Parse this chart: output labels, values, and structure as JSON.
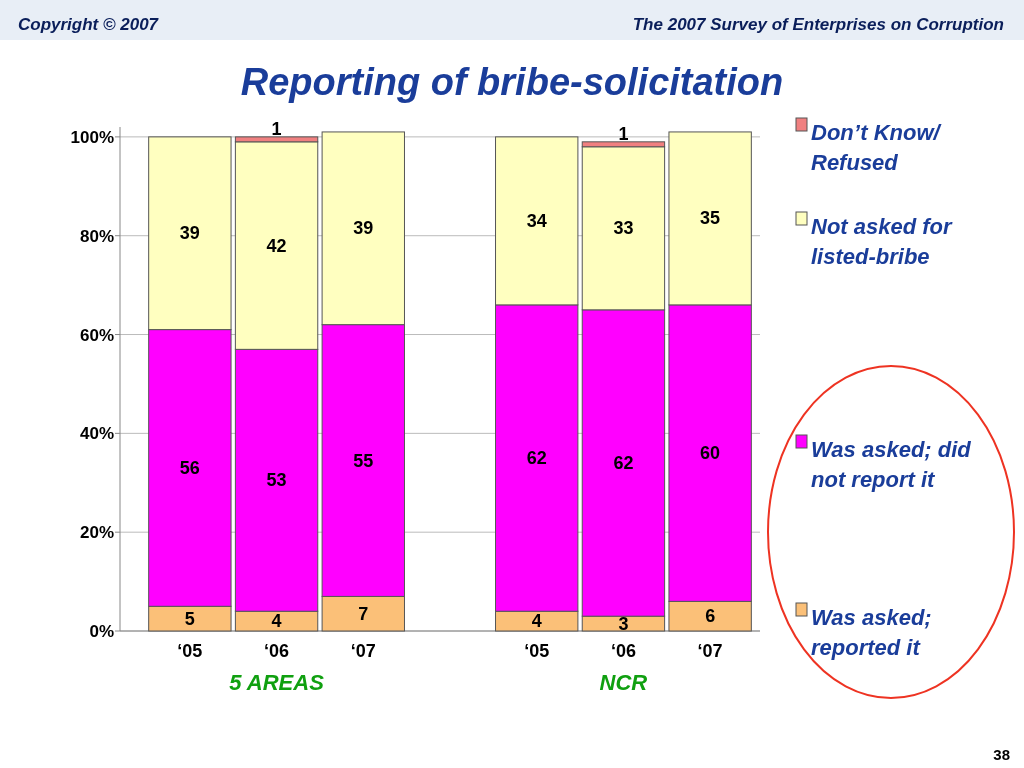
{
  "chart_data": {
    "type": "bar",
    "title": "Reporting of bribe-solicitation",
    "stacked": true,
    "data_labels": true,
    "grid": "y",
    "legend": "right",
    "categories": [
      "‘05",
      "‘06",
      "‘07",
      null,
      "‘05",
      "‘06",
      "‘07"
    ],
    "series": [
      {
        "name": "Was asked; reported it",
        "color": "#fbc078",
        "values": [
          5,
          4,
          7,
          null,
          4,
          3,
          6
        ]
      },
      {
        "name": "Was asked; did not report it",
        "color": "#ff00ff",
        "values": [
          56,
          53,
          55,
          null,
          62,
          62,
          60
        ]
      },
      {
        "name": "Not asked for listed-bribe",
        "color": "#ffffc0",
        "values": [
          39,
          42,
          39,
          null,
          34,
          33,
          35
        ]
      },
      {
        "name": "Don’t Know/ Refused",
        "color": "#f08080",
        "values": [
          null,
          1,
          null,
          null,
          null,
          1,
          null
        ]
      }
    ],
    "ylim": [
      0,
      102
    ],
    "yticks": [
      {
        "value": 0,
        "label": "0%"
      },
      {
        "value": 20,
        "label": "20%"
      },
      {
        "value": 40,
        "label": "40%"
      },
      {
        "value": 60,
        "label": "60%"
      },
      {
        "value": 80,
        "label": "80%"
      },
      {
        "value": 100,
        "label": "100%"
      }
    ],
    "annotations": [
      "Copyright © 2007",
      "The 2007 Survey of Enterprises on Corruption",
      "5 AREAS",
      "NCR",
      "38"
    ]
  }
}
